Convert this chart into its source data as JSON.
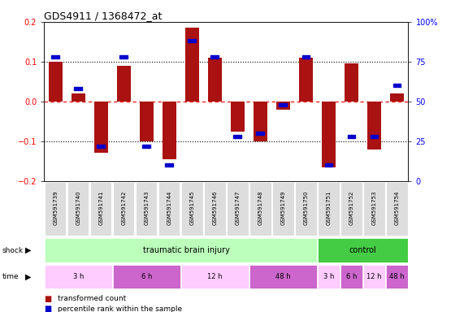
{
  "title": "GDS4911 / 1368472_at",
  "samples": [
    "GSM591739",
    "GSM591740",
    "GSM591741",
    "GSM591742",
    "GSM591743",
    "GSM591744",
    "GSM591745",
    "GSM591746",
    "GSM591747",
    "GSM591748",
    "GSM591749",
    "GSM591750",
    "GSM591751",
    "GSM591752",
    "GSM591753",
    "GSM591754"
  ],
  "red_values": [
    0.1,
    0.02,
    -0.13,
    0.09,
    -0.1,
    -0.145,
    0.185,
    0.11,
    -0.075,
    -0.1,
    -0.02,
    0.11,
    -0.165,
    0.095,
    -0.12,
    0.02
  ],
  "blue_values": [
    78,
    58,
    22,
    78,
    22,
    10,
    88,
    78,
    28,
    30,
    48,
    78,
    10,
    28,
    28,
    60
  ],
  "bar_color": "#aa1111",
  "dot_color": "#0000cc",
  "ylim": [
    -0.2,
    0.2
  ],
  "y2lim": [
    0,
    100
  ],
  "yticks": [
    -0.2,
    -0.1,
    0.0,
    0.1,
    0.2
  ],
  "y2ticks": [
    0,
    25,
    50,
    75,
    100
  ],
  "background_color": "#ffffff",
  "sample_box_color": "#cccccc",
  "sample_box_inner_color": "#dddddd",
  "shock_tbi_color": "#bbffbb",
  "shock_ctrl_color": "#44cc44",
  "time_colors": [
    "#ffccff",
    "#cc66cc",
    "#ffccff",
    "#cc66cc",
    "#ffccff",
    "#cc66cc",
    "#ffccff",
    "#cc66cc"
  ],
  "time_groups": [
    {
      "label": "3 h",
      "start": 0,
      "end": 3
    },
    {
      "label": "6 h",
      "start": 3,
      "end": 6
    },
    {
      "label": "12 h",
      "start": 6,
      "end": 9
    },
    {
      "label": "48 h",
      "start": 9,
      "end": 12
    },
    {
      "label": "3 h",
      "start": 12,
      "end": 13
    },
    {
      "label": "6 h",
      "start": 13,
      "end": 14
    },
    {
      "label": "12 h",
      "start": 14,
      "end": 15
    },
    {
      "label": "48 h",
      "start": 15,
      "end": 16
    }
  ],
  "legend_items": [
    {
      "label": "transformed count",
      "color": "#aa1111"
    },
    {
      "label": "percentile rank within the sample",
      "color": "#0000cc"
    }
  ]
}
